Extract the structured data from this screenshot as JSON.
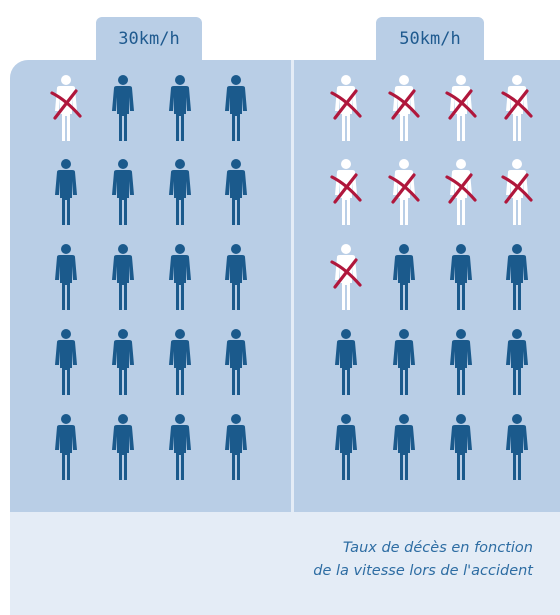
{
  "colors": {
    "survivor": "#1b5a8c",
    "fatality": "#ffffff",
    "cross": "#b0173c",
    "panel": "#b9cee6",
    "card": "#e4ecf6",
    "caption": "#2e6da3"
  },
  "icon": "person-icon",
  "groups": [
    {
      "label": "30km/h",
      "total": 20,
      "deaths": 1
    },
    {
      "label": "50km/h",
      "total": 20,
      "deaths": 9
    }
  ],
  "caption": {
    "line1": "Taux de décès en fonction",
    "line2": "de la vitesse lors de l'accident"
  }
}
